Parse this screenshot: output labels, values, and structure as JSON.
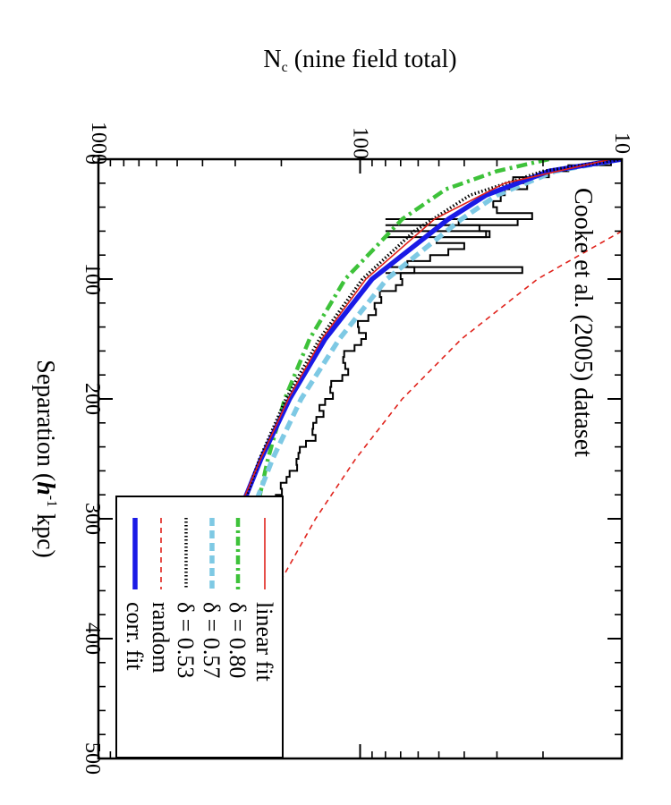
{
  "chart_data": {
    "type": "line",
    "rotated_90_cw": true,
    "annotation": "Cooke et al. (2005) dataset",
    "xlabel": "Separation (h⁻¹ kpc)",
    "xlabel_parts": {
      "pre": "Separation (",
      "h": "h",
      "sup": "-1",
      "post": " kpc)"
    },
    "ylabel": "Nc (nine field total)",
    "ylabel_parts": {
      "n": "N",
      "sub": "c",
      "post": " (nine field total)"
    },
    "xlim": [
      0,
      500
    ],
    "ylim": [
      10,
      1000
    ],
    "yscale": "log",
    "xticks": [
      0,
      100,
      200,
      300,
      400,
      500
    ],
    "yticks": [
      10,
      100,
      1000
    ],
    "ytick_labels": [
      "10",
      "100",
      "1000"
    ],
    "legend": [
      {
        "label": "linear fit",
        "color": "#e0231c",
        "style": "solid-thin"
      },
      {
        "label": "δ = 0.80",
        "color": "#3ec23a",
        "style": "dashdot-thick"
      },
      {
        "label": "δ = 0.57",
        "color": "#7ec9e4",
        "style": "dashed-thick"
      },
      {
        "label": "δ = 0.53",
        "color": "#000000",
        "style": "dotted"
      },
      {
        "label": "random",
        "color": "#e0231c",
        "style": "dashed-thin"
      },
      {
        "label": "corr. fit",
        "color": "#1a1ae6",
        "style": "solid-thick"
      }
    ],
    "series": [
      {
        "name": "linear fit",
        "x": [
          0,
          20,
          50,
          100,
          150,
          200,
          250,
          300,
          350,
          400,
          450,
          490
        ],
        "y": [
          11,
          28,
          52,
          95,
          140,
          188,
          240,
          300,
          355,
          415,
          470,
          525
        ]
      },
      {
        "name": "δ = 0.80",
        "x": [
          0,
          10,
          25,
          50,
          100,
          150,
          200,
          250,
          300,
          350,
          400,
          450,
          500
        ],
        "y": [
          19,
          30,
          47,
          69,
          114,
          156,
          194,
          225,
          253,
          275,
          293,
          307,
          317
        ]
      },
      {
        "name": "δ = 0.57",
        "x": [
          0,
          10,
          30,
          50,
          100,
          150,
          200,
          250,
          300,
          350,
          400,
          450,
          500
        ],
        "y": [
          10,
          18,
          30,
          41,
          79,
          120,
          168,
          216,
          265,
          316,
          358,
          398,
          438
        ]
      },
      {
        "name": "δ = 0.53",
        "x": [
          0,
          10,
          30,
          60,
          100,
          150,
          200,
          250,
          300,
          350,
          400,
          450,
          490
        ],
        "y": [
          9,
          20,
          38,
          62,
          98,
          143,
          192,
          242,
          292,
          344,
          395,
          447,
          488
        ]
      },
      {
        "name": "random",
        "x": [
          60,
          100,
          150,
          200,
          250,
          300,
          350,
          400,
          450,
          500
        ],
        "y": [
          10,
          21,
          41,
          69,
          104,
          148,
          199,
          258,
          326,
          400
        ]
      },
      {
        "name": "corr. fit",
        "x": [
          0,
          10,
          30,
          50,
          100,
          150,
          200,
          250,
          300,
          350,
          400,
          450,
          500
        ],
        "y": [
          10,
          19,
          33,
          46,
          90,
          136,
          186,
          239,
          296,
          356,
          420,
          485,
          552
        ]
      },
      {
        "name": "histogram",
        "bin_width": 5,
        "values": [
          11,
          16,
          19,
          26,
          23,
          28,
          29,
          31,
          30,
          22,
          42,
          35,
          33,
          51,
          40,
          46,
          54,
          66,
          62,
          70,
          69,
          73,
          84,
          83,
          88,
          87,
          93,
          102,
          101,
          95,
          99,
          105,
          115,
          116,
          114,
          111,
          117,
          129,
          130,
          127,
          136,
          143,
          138,
          147,
          151,
          152,
          148,
          161,
          170,
          172,
          175,
          174,
          186,
          191,
          201,
          199,
          210,
          217,
          215,
          227,
          224,
          227,
          249,
          256,
          257,
          244,
          258,
          264,
          270,
          275,
          279,
          298,
          305,
          315,
          314,
          312,
          300,
          333,
          337,
          348,
          348,
          353,
          360,
          365,
          372,
          379,
          382,
          394,
          393,
          406,
          410,
          408,
          411,
          419,
          444,
          435,
          444,
          462,
          468,
          478
        ]
      }
    ],
    "histogram_low_spikes": {
      "x": [
        50,
        60,
        90
      ],
      "y": [
        25,
        32,
        24
      ]
    }
  }
}
